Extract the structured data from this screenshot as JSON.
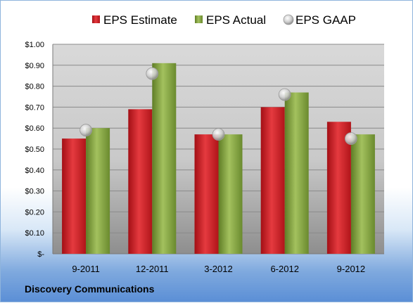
{
  "caption": "Discovery Communications",
  "chart_data": {
    "type": "bar",
    "categories": [
      "9-2011",
      "12-2011",
      "3-2012",
      "6-2012",
      "9-2012"
    ],
    "series": [
      {
        "name": "EPS Estimate",
        "kind": "bar",
        "color": "#c0181f",
        "values": [
          0.55,
          0.69,
          0.57,
          0.7,
          0.63
        ]
      },
      {
        "name": "EPS Actual",
        "kind": "bar",
        "color": "#7a9a3a",
        "values": [
          0.6,
          0.91,
          0.57,
          0.77,
          0.57
        ]
      },
      {
        "name": "EPS GAAP",
        "kind": "marker",
        "color": "#b8b8b8",
        "values": [
          0.59,
          0.86,
          0.57,
          0.76,
          0.55
        ]
      }
    ],
    "y_ticks": [
      "$-",
      "$0.10",
      "$0.20",
      "$0.30",
      "$0.40",
      "$0.50",
      "$0.60",
      "$0.70",
      "$0.80",
      "$0.90",
      "$1.00"
    ],
    "ylim": [
      0,
      1.0
    ],
    "grid": true,
    "legend_position": "top"
  }
}
